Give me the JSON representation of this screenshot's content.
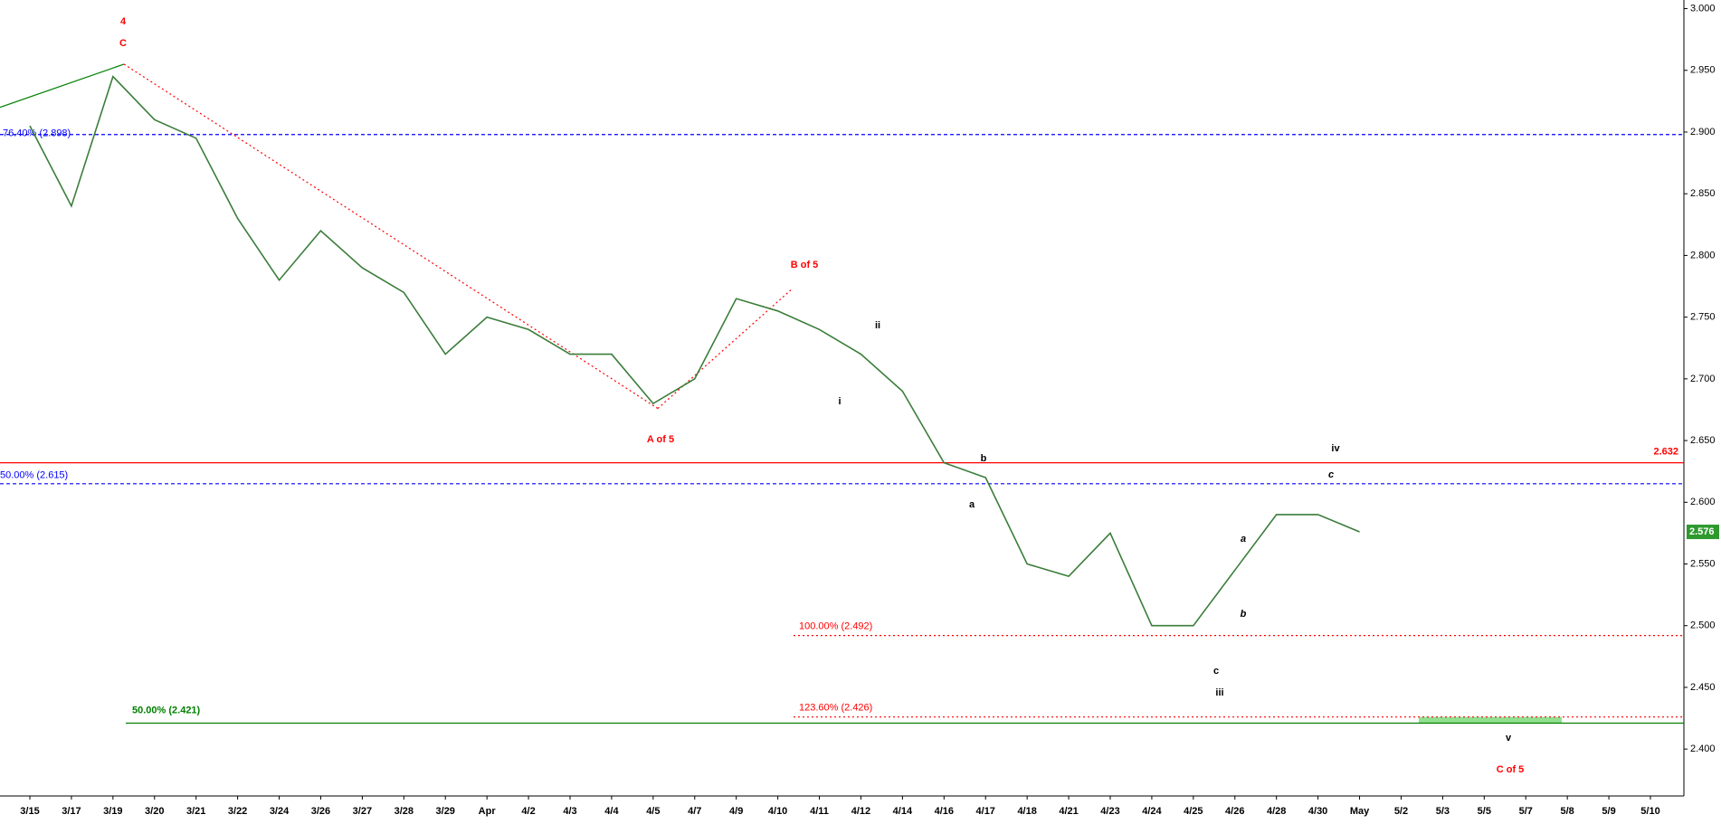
{
  "chart_data": {
    "type": "line",
    "categories": [
      "3/15",
      "3/17",
      "3/19",
      "3/20",
      "3/21",
      "3/22",
      "3/24",
      "3/26",
      "3/27",
      "3/28",
      "3/29",
      "Apr",
      "4/2",
      "4/3",
      "4/4",
      "4/5",
      "4/7",
      "4/9",
      "4/10",
      "4/11",
      "4/12",
      "4/14",
      "4/16",
      "4/17",
      "4/18",
      "4/21",
      "4/23",
      "4/24",
      "4/25",
      "4/26",
      "4/28",
      "4/30",
      "May",
      "5/2",
      "5/3",
      "5/5",
      "5/7",
      "5/8",
      "5/9",
      "5/10"
    ],
    "values": [
      2.905,
      2.84,
      2.945,
      2.91,
      2.895,
      2.83,
      2.78,
      2.82,
      2.79,
      2.77,
      2.72,
      2.75,
      2.74,
      2.72,
      2.72,
      2.68,
      2.7,
      2.765,
      2.755,
      2.74,
      2.72,
      2.69,
      2.632,
      2.62,
      2.55,
      2.54,
      2.575,
      2.5,
      2.5,
      2.545,
      2.59,
      2.59,
      2.576,
      null,
      null,
      null,
      null,
      null,
      null,
      null
    ],
    "color": "#3a7d3a",
    "ylim": [
      2.362,
      3.007
    ],
    "yticks": [
      {
        "value": 2.4,
        "label": "2.400"
      },
      {
        "value": 2.45,
        "label": "2.450"
      },
      {
        "value": 2.5,
        "label": "2.500"
      },
      {
        "value": 2.55,
        "label": "2.550"
      },
      {
        "value": 2.6,
        "label": "2.600"
      },
      {
        "value": 2.65,
        "label": "2.650"
      },
      {
        "value": 2.7,
        "label": "2.700"
      },
      {
        "value": 2.75,
        "label": "2.750"
      },
      {
        "value": 2.8,
        "label": "2.800"
      },
      {
        "value": 2.85,
        "label": "2.850"
      },
      {
        "value": 2.9,
        "label": "2.900"
      },
      {
        "value": 2.95,
        "label": "2.950"
      },
      {
        "value": 3.0,
        "label": "3.000"
      }
    ],
    "levels": [
      {
        "value": 2.898,
        "label": "76.40% (2.898)",
        "color": "#0000ff",
        "style": "dashed"
      },
      {
        "value": 2.615,
        "label": "50.00% (2.615)",
        "color": "#0000ff",
        "style": "dashed"
      },
      {
        "value": 2.632,
        "color": "#ff0000",
        "style": "solid"
      },
      {
        "value": 2.492,
        "label": "100.00% (2.492)",
        "color": "#ff0000",
        "style": "dotted"
      },
      {
        "value": 2.426,
        "label": "123.60% (2.426)",
        "color": "#ff0000",
        "style": "dotted"
      },
      {
        "value": 2.421,
        "label": "50.00% (2.421)",
        "color": "#008000",
        "style": "solid"
      }
    ],
    "trendlines": [
      {
        "values": [
          2.92,
          2.955
        ],
        "color": "#008000",
        "style": "solid"
      },
      {
        "values": [
          2.955,
          2.676
        ],
        "color": "#ff0000",
        "style": "dotted"
      },
      {
        "values": [
          2.676,
          2.772
        ],
        "color": "#ff0000",
        "style": "dotted"
      }
    ],
    "target_zone": [
      2.421,
      2.426
    ],
    "last_value": 2.576,
    "annotations": [
      "4",
      "C",
      "B of 5",
      "A of 5",
      "ii",
      "i",
      "b",
      "a",
      "iv",
      "c",
      "a",
      "b",
      "c",
      "iii",
      "v",
      "C of 5"
    ]
  }
}
